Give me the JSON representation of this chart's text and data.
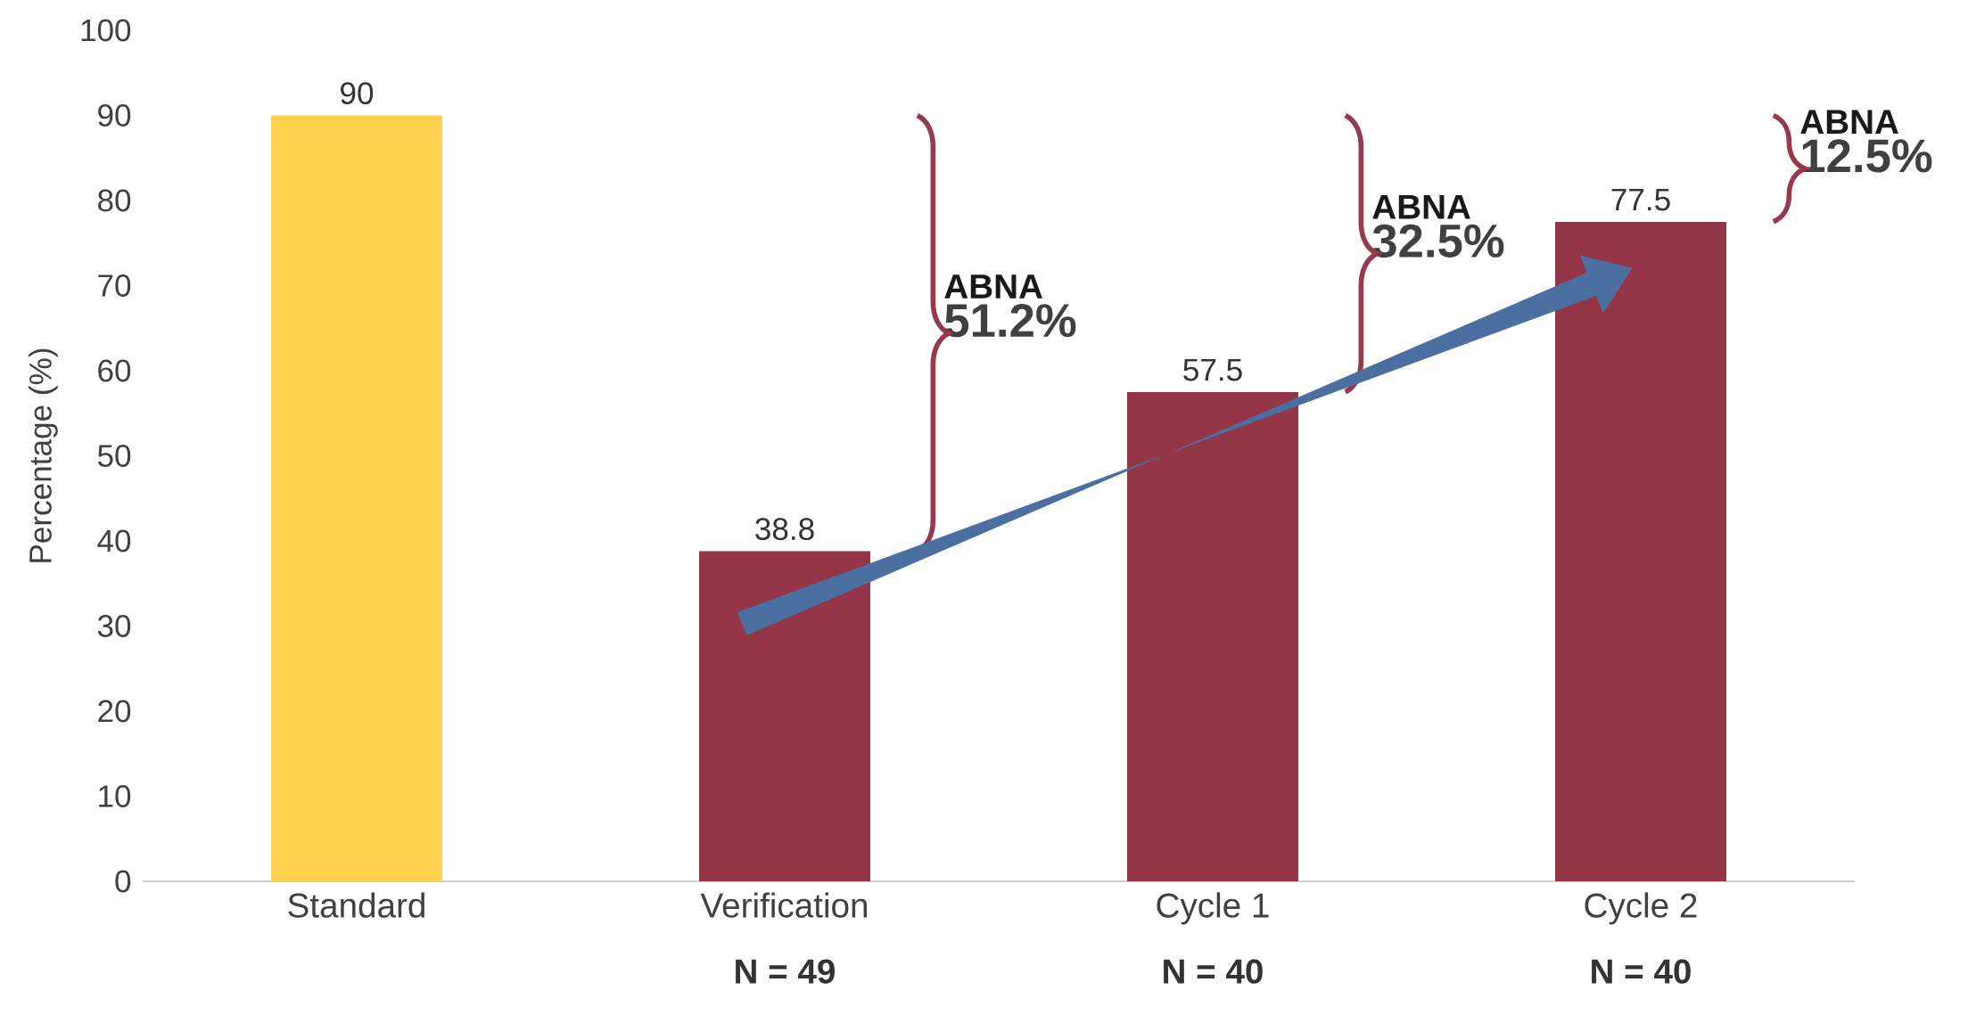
{
  "chart_data": {
    "type": "bar",
    "ylabel": "Percentage (%)",
    "categories": [
      "Standard",
      "Verification",
      "Cycle 1",
      "Cycle 2"
    ],
    "values": [
      90,
      38.8,
      57.5,
      77.5
    ],
    "colors": [
      "#fdd14d",
      "#943648",
      "#943648",
      "#943648"
    ],
    "ylim": [
      0,
      100
    ],
    "yticks": [
      0,
      10,
      20,
      30,
      40,
      50,
      60,
      70,
      80,
      90,
      100
    ],
    "data_labels": true,
    "annotations": [
      "ABNA",
      "51.2%",
      "ABNA",
      "32.5%",
      "ABNA",
      "12.5%",
      "N = 49",
      "N = 40",
      "N = 40"
    ]
  }
}
